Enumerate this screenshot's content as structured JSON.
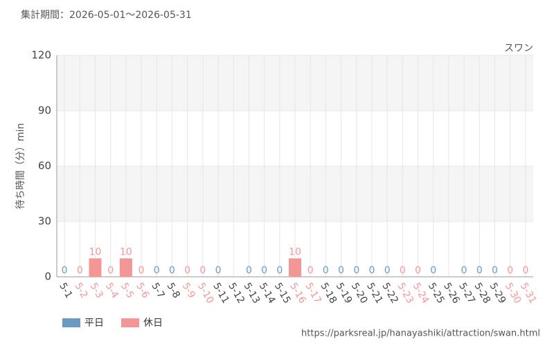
{
  "chart_data": {
    "type": "bar",
    "title": "集計期間：2026-05-01～2026-05-31",
    "annotation": "スワン",
    "y_label": "待ち時間（分）min",
    "categories": [
      "5-1",
      "5-2",
      "5-3",
      "5-4",
      "5-5",
      "5-6",
      "5-7",
      "5-8",
      "5-9",
      "5-10",
      "5-11",
      "5-12",
      "5-13",
      "5-14",
      "5-15",
      "5-16",
      "5-17",
      "5-18",
      "5-19",
      "5-20",
      "5-21",
      "5-22",
      "5-23",
      "5-24",
      "5-25",
      "5-26",
      "5-27",
      "5-28",
      "5-29",
      "5-30",
      "5-31"
    ],
    "series": [
      {
        "name": "平日",
        "color": "#6a9ac4",
        "values": [
          0,
          null,
          null,
          null,
          null,
          null,
          0,
          0,
          null,
          null,
          0,
          null,
          0,
          0,
          0,
          null,
          null,
          0,
          0,
          0,
          0,
          0,
          null,
          null,
          0,
          null,
          0,
          0,
          0,
          null,
          null
        ]
      },
      {
        "name": "休日",
        "color": "#f59696",
        "values": [
          null,
          0,
          10,
          0,
          10,
          0,
          null,
          null,
          0,
          0,
          null,
          null,
          null,
          null,
          null,
          10,
          0,
          null,
          null,
          null,
          null,
          null,
          0,
          0,
          null,
          null,
          null,
          null,
          null,
          0,
          0
        ]
      }
    ],
    "ylim": [
      0,
      120
    ],
    "yticks": [
      0,
      30,
      60,
      90,
      120
    ],
    "grid": true,
    "legend": "bottom-left",
    "source": "https://parksreal.jp/hanayashiki/attraction/swan.html"
  }
}
